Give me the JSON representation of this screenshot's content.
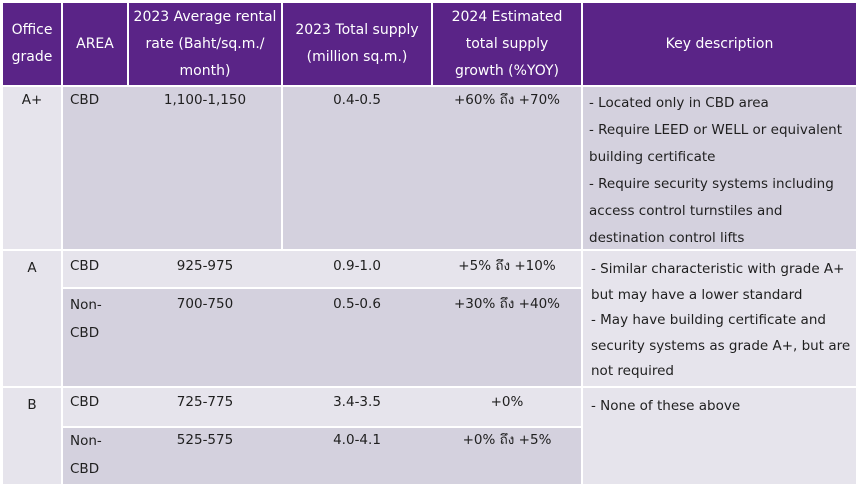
{
  "headers": {
    "grade": "Office grade",
    "area": "AREA",
    "rent": "2023 Average rental rate (Baht/sq.m./ month)",
    "supply": "2023 Total supply (million sq.m.)",
    "growth": "2024 Estimated total supply growth (%YOY)",
    "desc": "Key description"
  },
  "rows": [
    {
      "grade": "A+",
      "area": "CBD",
      "rent": "1,100-1,150",
      "supply": "0.4-0.5",
      "growth": "+60% ถึง +70%"
    },
    {
      "grade": "A",
      "area": "CBD",
      "rent": "925-975",
      "supply": "0.9-1.0",
      "growth": "+5% ถึง +10%"
    },
    {
      "area": "Non-CBD",
      "rent": "700-750",
      "supply": "0.5-0.6",
      "growth": "+30% ถึง +40%"
    },
    {
      "grade": "B",
      "area": "CBD",
      "rent": "725-775",
      "supply": "3.4-3.5",
      "growth": "+0%"
    },
    {
      "area": "Non-CBD",
      "rent": "525-575",
      "supply": "4.0-4.1",
      "growth": "+0% ถึง +5%"
    }
  ],
  "descriptions": {
    "aplus": [
      "- Located only in CBD area",
      "- Require LEED or WELL or equivalent",
      "building certificate",
      "- Require security systems including",
      "access control turnstiles and",
      "destination control lifts"
    ],
    "a": [
      "- Similar characteristic with grade A+",
      "but may have a lower standard",
      "- May have building certificate and",
      "security systems as grade A+, but are",
      "not required"
    ],
    "b": [
      "- None of these above"
    ]
  },
  "colors": {
    "header": "#5a2487",
    "row_dark": "#d4d1de",
    "row_light": "#e6e4ec"
  }
}
